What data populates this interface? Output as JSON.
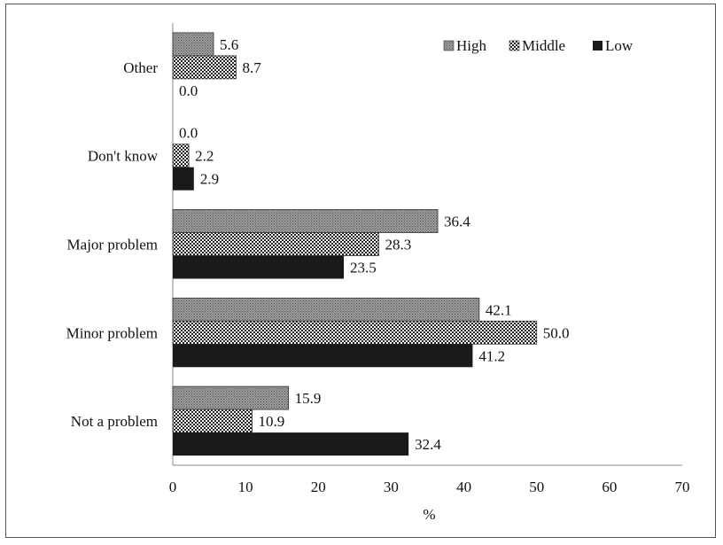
{
  "chart_data": {
    "type": "bar",
    "orientation": "horizontal",
    "categories": [
      "Not a problem",
      "Minor problem",
      "Major problem",
      "Don't know",
      "Other"
    ],
    "series": [
      {
        "name": "High",
        "values": [
          15.9,
          42.1,
          36.4,
          0.0,
          5.6
        ],
        "pattern": "dense-dots",
        "color": "#8c8c8c"
      },
      {
        "name": "Middle",
        "values": [
          10.9,
          50.0,
          28.3,
          2.2,
          8.7
        ],
        "pattern": "checker",
        "color": "#6a6a6a"
      },
      {
        "name": "Low",
        "values": [
          32.4,
          41.2,
          23.5,
          2.9,
          0.0
        ],
        "pattern": "solid",
        "color": "#1a1a1a"
      }
    ],
    "xlim": [
      0,
      70
    ],
    "xticks": [
      "0",
      "10",
      "20",
      "30",
      "40",
      "50",
      "60",
      "70"
    ],
    "xlabel": "%",
    "ylabel": "",
    "title": "",
    "grid": false,
    "legend_position": "top-right",
    "data_labels": [
      [
        "15.9",
        "10.9",
        "32.4"
      ],
      [
        "42.1",
        "50.0",
        "41.2"
      ],
      [
        "36.4",
        "28.3",
        "23.5"
      ],
      [
        "0.0",
        "2.2",
        "2.9"
      ],
      [
        "5.6",
        "8.7",
        "0.0"
      ]
    ]
  }
}
